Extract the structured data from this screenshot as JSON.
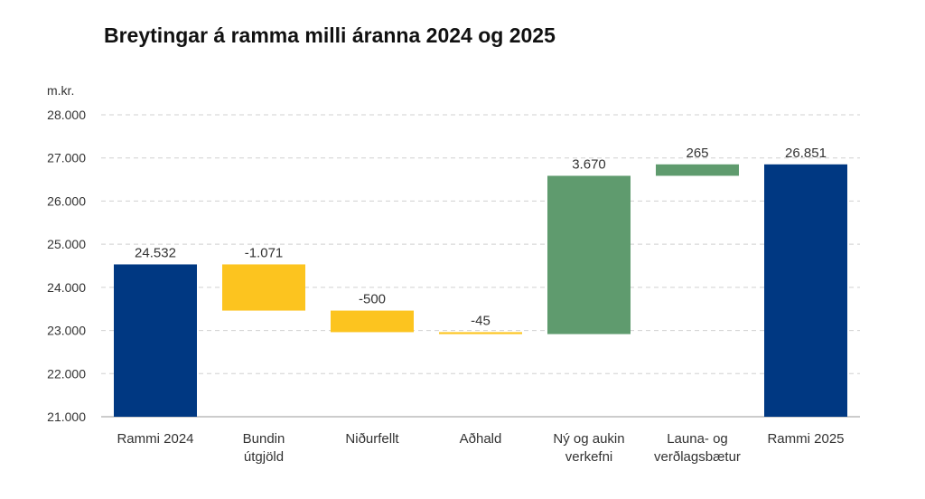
{
  "title": "Breytingar á ramma milli áranna 2024 og 2025",
  "unit_label": "m.kr.",
  "chart_data": {
    "type": "bar",
    "subtype": "waterfall",
    "title": "Breytingar á ramma milli áranna 2024 og 2025",
    "ylabel": "m.kr.",
    "xlabel": "",
    "ylim": [
      21000,
      28000
    ],
    "yticks": [
      21000,
      22000,
      23000,
      24000,
      25000,
      26000,
      27000,
      28000
    ],
    "ytick_labels": [
      "21.000",
      "22.000",
      "23.000",
      "24.000",
      "25.000",
      "26.000",
      "27.000",
      "28.000"
    ],
    "grid": true,
    "categories": [
      [
        "Rammi 2024"
      ],
      [
        "Bundin",
        "útgjöld"
      ],
      [
        "Niðurfellt"
      ],
      [
        "Aðhald"
      ],
      [
        "Ný og aukin",
        "verkefni"
      ],
      [
        "Launa- og",
        "verðlagsbætur"
      ],
      [
        "Rammi 2025"
      ]
    ],
    "bars": [
      {
        "kind": "total",
        "base": 21000,
        "top": 24532,
        "label": "24.532",
        "color": "#003882"
      },
      {
        "kind": "decrease",
        "base": 23461,
        "top": 24532,
        "label": "-1.071",
        "color": "#fcc41f"
      },
      {
        "kind": "decrease",
        "base": 22961,
        "top": 23461,
        "label": "-500",
        "color": "#fcc41f"
      },
      {
        "kind": "decrease",
        "base": 22916,
        "top": 22961,
        "label": "-45",
        "color": "#fcc41f"
      },
      {
        "kind": "increase",
        "base": 22916,
        "top": 26586,
        "label": "3.670",
        "color": "#5f9b6e"
      },
      {
        "kind": "increase",
        "base": 26586,
        "top": 26851,
        "label": "265",
        "color": "#5f9b6e"
      },
      {
        "kind": "total",
        "base": 21000,
        "top": 26851,
        "label": "26.851",
        "color": "#003882"
      }
    ]
  }
}
